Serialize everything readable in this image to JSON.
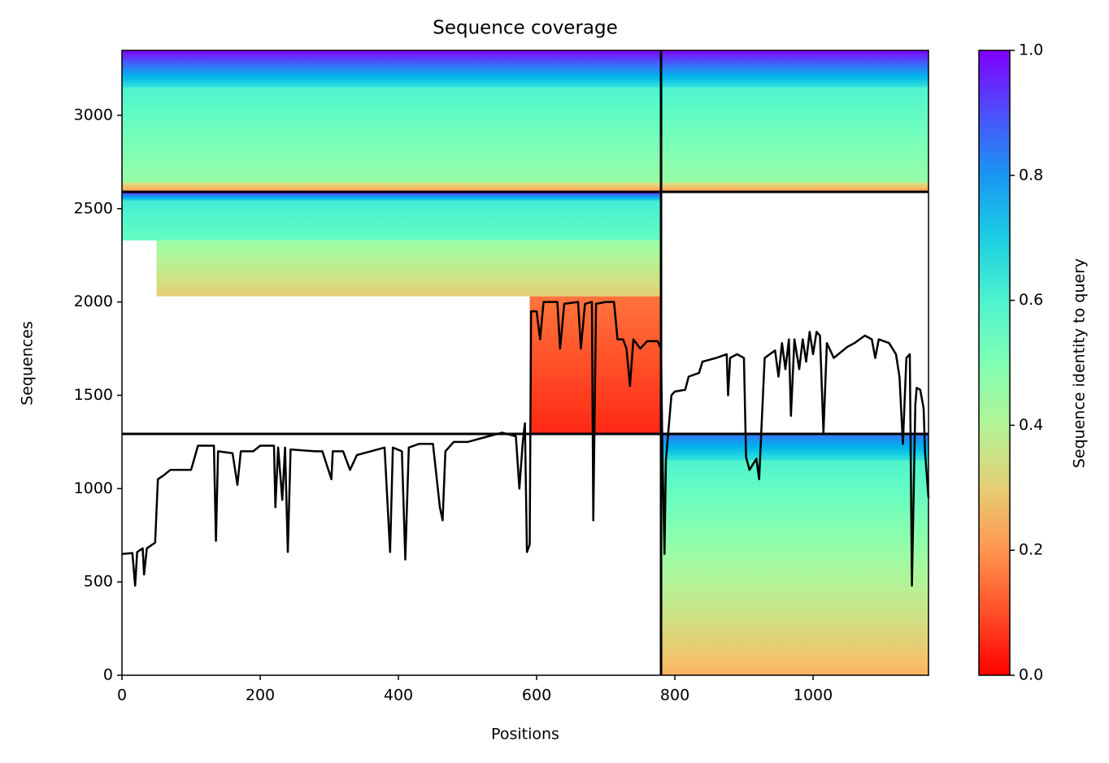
{
  "chart_data": {
    "type": "coverage",
    "title": "Sequence coverage",
    "xlabel": "Positions",
    "ylabel": "Sequences",
    "xlim": [
      0,
      1167
    ],
    "ylim": [
      0,
      3348
    ],
    "xticks": [
      0,
      200,
      400,
      600,
      800,
      1000
    ],
    "yticks": [
      0,
      500,
      1000,
      1500,
      2000,
      2500,
      3000
    ],
    "colormap": "rainbow_r",
    "bands": [
      {
        "x": [
          0,
          1167
        ],
        "y": [
          3150,
          3348
        ],
        "identity": [
          0.65,
          1.0
        ]
      },
      {
        "x": [
          0,
          1167
        ],
        "y": [
          2640,
          3150
        ],
        "identity": [
          0.45,
          0.6
        ]
      },
      {
        "x": [
          0,
          1167
        ],
        "y": [
          2590,
          2640
        ],
        "identity": [
          0.2,
          0.35
        ]
      },
      {
        "x": [
          0,
          780
        ],
        "y": [
          2540,
          2590
        ],
        "identity": [
          0.65,
          0.95
        ]
      },
      {
        "x": [
          0,
          780
        ],
        "y": [
          2330,
          2540
        ],
        "identity": [
          0.55,
          0.62
        ]
      },
      {
        "x": [
          50,
          780
        ],
        "y": [
          2030,
          2330
        ],
        "identity": [
          0.3,
          0.45
        ]
      },
      {
        "x": [
          590,
          780
        ],
        "y": [
          1293,
          2030
        ],
        "identity": [
          0.05,
          0.15
        ]
      },
      {
        "x": [
          780,
          1167
        ],
        "y": [
          1150,
          1293
        ],
        "identity": [
          0.65,
          0.85
        ]
      },
      {
        "x": [
          780,
          1167
        ],
        "y": [
          0,
          1150
        ],
        "identity": [
          0.25,
          0.6
        ]
      }
    ],
    "dividers": {
      "x": [
        780
      ],
      "y": [
        1293,
        2590
      ]
    },
    "coverage": {
      "color": "#000000",
      "x": [
        0,
        15,
        19,
        22,
        30,
        32,
        36,
        48,
        52,
        60,
        70,
        90,
        100,
        110,
        133,
        136,
        139,
        160,
        167,
        172,
        190,
        200,
        220,
        222,
        226,
        232,
        236,
        240,
        244,
        280,
        290,
        303,
        305,
        320,
        330,
        340,
        360,
        380,
        388,
        392,
        405,
        410,
        415,
        430,
        450,
        460,
        464,
        468,
        480,
        500,
        530,
        550,
        570,
        575,
        580,
        583,
        586,
        590,
        592,
        600,
        605,
        610,
        630,
        634,
        640,
        660,
        664,
        670,
        680,
        682,
        686,
        700,
        712,
        717,
        725,
        730,
        735,
        740,
        750,
        760,
        775,
        780,
        782,
        785,
        787,
        795,
        800,
        815,
        820,
        835,
        840,
        860,
        875,
        877,
        880,
        890,
        900,
        903,
        908,
        918,
        922,
        925,
        930,
        945,
        950,
        955,
        960,
        965,
        968,
        973,
        980,
        985,
        990,
        995,
        1000,
        1005,
        1010,
        1015,
        1020,
        1030,
        1050,
        1060,
        1075,
        1085,
        1090,
        1095,
        1110,
        1120,
        1125,
        1130,
        1135,
        1140,
        1143,
        1148,
        1150,
        1155,
        1160,
        1162,
        1167
      ],
      "values": [
        650,
        655,
        480,
        660,
        680,
        540,
        680,
        710,
        1050,
        1070,
        1100,
        1100,
        1100,
        1230,
        1230,
        720,
        1200,
        1190,
        1020,
        1200,
        1200,
        1230,
        1230,
        900,
        1220,
        940,
        1220,
        660,
        1210,
        1200,
        1200,
        1050,
        1200,
        1200,
        1100,
        1180,
        1200,
        1220,
        660,
        1220,
        1200,
        620,
        1220,
        1240,
        1240,
        900,
        830,
        1200,
        1250,
        1250,
        1280,
        1300,
        1280,
        1000,
        1250,
        1350,
        660,
        700,
        1950,
        1950,
        1800,
        2000,
        2000,
        1750,
        1990,
        2000,
        1750,
        1990,
        2000,
        830,
        1990,
        2000,
        2000,
        1800,
        1800,
        1750,
        1550,
        1800,
        1750,
        1790,
        1790,
        1750,
        1200,
        650,
        1150,
        1500,
        1520,
        1530,
        1600,
        1620,
        1680,
        1700,
        1720,
        1500,
        1700,
        1720,
        1700,
        1170,
        1100,
        1160,
        1050,
        1300,
        1700,
        1740,
        1600,
        1780,
        1640,
        1800,
        1390,
        1800,
        1640,
        1800,
        1680,
        1840,
        1720,
        1840,
        1820,
        1300,
        1780,
        1700,
        1760,
        1780,
        1820,
        1800,
        1700,
        1800,
        1780,
        1720,
        1600,
        1240,
        1700,
        1720,
        480,
        1450,
        1540,
        1530,
        1430,
        1200,
        950
      ]
    },
    "colorbar": {
      "label": "Sequence identity to query",
      "lim": [
        0,
        1
      ],
      "ticks": [
        {
          "value": 0,
          "label": "0.0"
        },
        0.2,
        0.4,
        0.6,
        0.8,
        {
          "value": 1,
          "label": "1.0"
        }
      ]
    }
  }
}
